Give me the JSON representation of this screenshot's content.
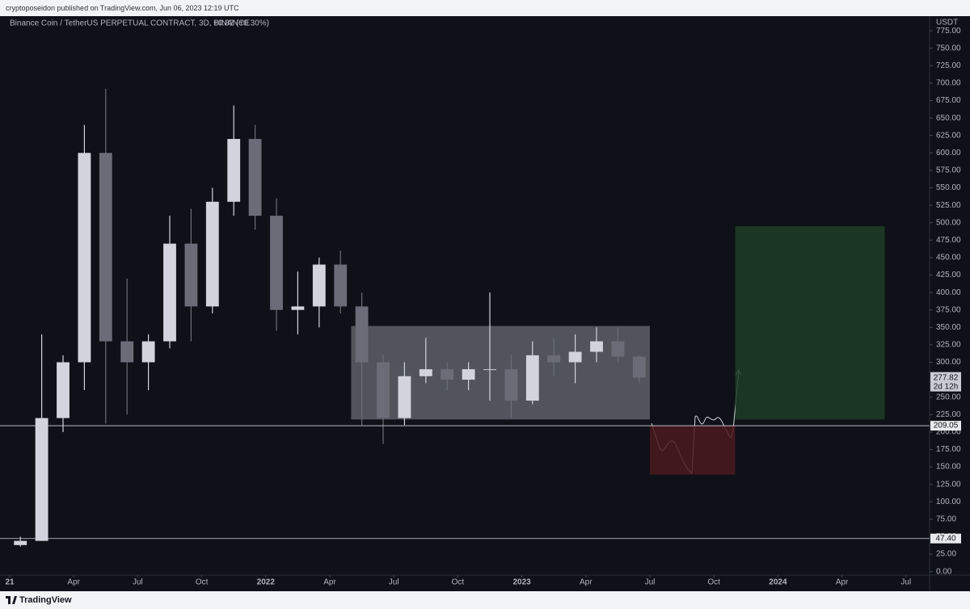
{
  "header": {
    "publisher": "cryptoposeidon published on TradingView.com, Jun 06, 2023 12:19 UTC"
  },
  "footer": {
    "brand": "TradingView"
  },
  "chart_data": {
    "type": "candlestick",
    "title": "Binance Coin / TetherUS PERPETUAL CONTRACT, 3D, BINANCE",
    "change": "+0.82 (+0.30%)",
    "y_unit": "USDT",
    "x": [
      "2021-01",
      "2021-02",
      "2021-03",
      "2021-04",
      "2021-05",
      "2021-06",
      "2021-07",
      "2021-08",
      "2021-09",
      "2021-10",
      "2021-11",
      "2021-12",
      "2022-01",
      "2022-02",
      "2022-03",
      "2022-04",
      "2022-05",
      "2022-06",
      "2022-07",
      "2022-08",
      "2022-09",
      "2022-10",
      "2022-11",
      "2022-12",
      "2023-01",
      "2023-02",
      "2023-03",
      "2023-04",
      "2023-05",
      "2023-06"
    ],
    "open": [
      38,
      44,
      220,
      300,
      600,
      330,
      300,
      330,
      470,
      380,
      530,
      620,
      510,
      375,
      380,
      440,
      380,
      300,
      220,
      280,
      290,
      275,
      290,
      290,
      245,
      310,
      300,
      315,
      330,
      308
    ],
    "high": [
      50,
      340,
      310,
      640,
      692,
      420,
      340,
      510,
      520,
      550,
      668,
      640,
      535,
      430,
      450,
      460,
      400,
      310,
      300,
      335,
      300,
      300,
      400,
      310,
      330,
      335,
      340,
      350,
      350,
      310
    ],
    "low": [
      36,
      44,
      200,
      260,
      212,
      225,
      260,
      320,
      330,
      370,
      510,
      490,
      345,
      340,
      350,
      370,
      210,
      183,
      210,
      270,
      260,
      260,
      245,
      220,
      240,
      280,
      270,
      300,
      300,
      270
    ],
    "close": [
      44,
      220,
      300,
      600,
      330,
      300,
      330,
      470,
      380,
      530,
      620,
      510,
      375,
      380,
      440,
      380,
      300,
      220,
      280,
      290,
      275,
      290,
      290,
      245,
      310,
      300,
      315,
      330,
      308,
      278
    ],
    "up_color": "#d1d4dc",
    "down_color": "#6a6d78",
    "xlim": [
      "2020-12",
      "2024-08"
    ],
    "xticks": [
      {
        "value": "2021-01",
        "label": "21"
      },
      {
        "value": "2021-04",
        "label": "Apr"
      },
      {
        "value": "2021-07",
        "label": "Jul"
      },
      {
        "value": "2021-10",
        "label": "Oct"
      },
      {
        "value": "2022-01",
        "label": "2022"
      },
      {
        "value": "2022-04",
        "label": "Apr"
      },
      {
        "value": "2022-07",
        "label": "Jul"
      },
      {
        "value": "2022-10",
        "label": "Oct"
      },
      {
        "value": "2023-01",
        "label": "2023"
      },
      {
        "value": "2023-04",
        "label": "Apr"
      },
      {
        "value": "2023-07",
        "label": "Jul"
      },
      {
        "value": "2023-10",
        "label": "Oct"
      },
      {
        "value": "2024-01",
        "label": "2024"
      },
      {
        "value": "2024-04",
        "label": "Apr"
      },
      {
        "value": "2024-07",
        "label": "Jul"
      }
    ],
    "ylim": [
      -5,
      796
    ],
    "yticks": [
      {
        "value": 0,
        "label": "0.00"
      },
      {
        "value": 25,
        "label": "25.00"
      },
      {
        "value": 50,
        "label": "50.00"
      },
      {
        "value": 75,
        "label": "75.00"
      },
      {
        "value": 100,
        "label": "100.00"
      },
      {
        "value": 125,
        "label": "125.00"
      },
      {
        "value": 150,
        "label": "150.00"
      },
      {
        "value": 175,
        "label": "175.00"
      },
      {
        "value": 200,
        "label": "200.00"
      },
      {
        "value": 225,
        "label": "225.00"
      },
      {
        "value": 250,
        "label": "250.00"
      },
      {
        "value": 275,
        "label": "275.00"
      },
      {
        "value": 300,
        "label": "300.00"
      },
      {
        "value": 325,
        "label": "325.00"
      },
      {
        "value": 350,
        "label": "350.00"
      },
      {
        "value": 375,
        "label": "375.00"
      },
      {
        "value": 400,
        "label": "400.00"
      },
      {
        "value": 425,
        "label": "425.00"
      },
      {
        "value": 450,
        "label": "450.00"
      },
      {
        "value": 475,
        "label": "475.00"
      },
      {
        "value": 500,
        "label": "500.00"
      },
      {
        "value": 525,
        "label": "525.00"
      },
      {
        "value": 550,
        "label": "550.00"
      },
      {
        "value": 575,
        "label": "575.00"
      },
      {
        "value": 600,
        "label": "600.00"
      },
      {
        "value": 625,
        "label": "625.00"
      },
      {
        "value": 650,
        "label": "650.00"
      },
      {
        "value": 675,
        "label": "675.00"
      },
      {
        "value": 700,
        "label": "700.00"
      },
      {
        "value": 725,
        "label": "725.00"
      },
      {
        "value": 750,
        "label": "750.00"
      },
      {
        "value": 775,
        "label": "775.00"
      }
    ],
    "levels": [
      {
        "value": 209.05,
        "label": "209.05"
      },
      {
        "value": 47.4,
        "label": "47.40"
      }
    ],
    "last_price": {
      "value": 277.82,
      "label": "277.82",
      "countdown": "2d 12h"
    },
    "zones": [
      {
        "x": [
          "2022-05",
          "2023-07"
        ],
        "y": [
          218,
          352
        ],
        "color": "#5d6069"
      },
      {
        "x": [
          "2023-07",
          "2023-11"
        ],
        "y": [
          139,
          209
        ],
        "color": "#4a1a1f"
      },
      {
        "x": [
          "2023-11",
          "2024-06"
        ],
        "y": [
          218,
          495
        ],
        "color": "#1f3d27"
      }
    ]
  }
}
